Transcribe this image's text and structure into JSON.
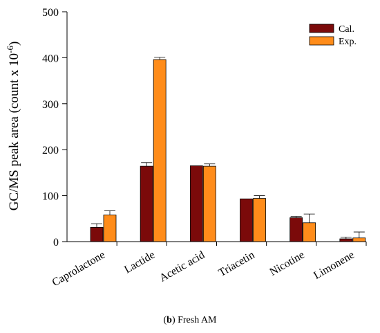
{
  "chart_data": {
    "type": "bar",
    "categories": [
      "Caprolactone",
      "Lactide",
      "Acetic acid",
      "Triacetin",
      "Nicotine",
      "Limonene"
    ],
    "series": [
      {
        "name": "Cal.",
        "color": "#7b0a0a",
        "values": [
          31,
          164,
          165,
          93,
          52,
          6
        ],
        "errors": [
          8,
          8,
          0,
          0,
          3,
          4
        ]
      },
      {
        "name": "Exp.",
        "color": "#ff8c1a",
        "values": [
          58,
          396,
          164,
          94,
          41,
          8
        ],
        "errors": [
          9,
          5,
          5,
          6,
          19,
          13
        ]
      }
    ],
    "ylabel_main": "GC/MS peak area (count x 10",
    "ylabel_sup": "-6",
    "ylabel_end": ")",
    "xlabel": "",
    "ylim": [
      0,
      500
    ],
    "yticks": [
      0,
      100,
      200,
      300,
      400,
      500
    ],
    "legend_position": "top-right",
    "grid": false
  },
  "caption": {
    "label": "b",
    "text": " Fresh AM",
    "open": "(",
    "close": ")"
  }
}
